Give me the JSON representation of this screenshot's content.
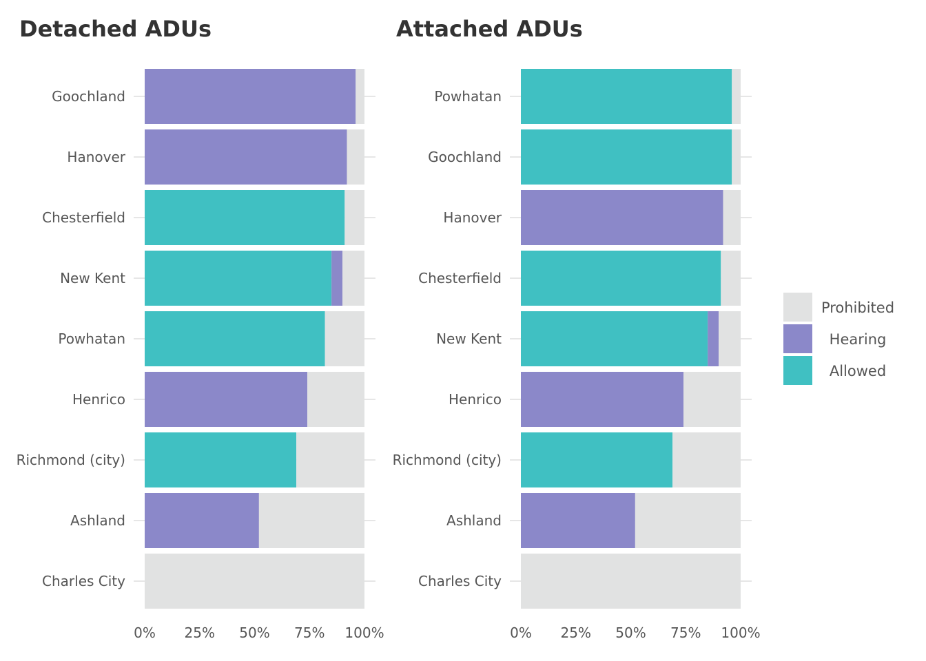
{
  "colors": {
    "Prohibited": "#e1e2e2",
    "Hearing": "#8b88c9",
    "Allowed": "#40c0c2",
    "text": "#555555",
    "title": "#333333"
  },
  "legend": [
    {
      "label": "Prohibited",
      "color": "#e1e2e2"
    },
    {
      "label": "Hearing",
      "color": "#8b88c9"
    },
    {
      "label": "Allowed",
      "color": "#40c0c2"
    }
  ],
  "chart_data": [
    {
      "type": "bar",
      "orientation": "horizontal",
      "stacked": true,
      "title": "Detached ADUs",
      "xlim": [
        0,
        100
      ],
      "xticks": [
        "0%",
        "25%",
        "50%",
        "75%",
        "100%"
      ],
      "legend_position": "right",
      "categories": [
        "Goochland",
        "Hanover",
        "Chesterfield",
        "New Kent",
        "Powhatan",
        "Henrico",
        "Richmond (city)",
        "Ashland",
        "Charles City"
      ],
      "series": [
        {
          "name": "Allowed",
          "values": [
            0,
            0,
            91,
            85,
            82,
            0,
            69,
            0,
            0
          ]
        },
        {
          "name": "Hearing",
          "values": [
            96,
            92,
            0,
            5,
            0,
            74,
            0,
            52,
            0
          ]
        },
        {
          "name": "Prohibited",
          "values": [
            4,
            8,
            9,
            10,
            18,
            26,
            31,
            48,
            100
          ]
        }
      ]
    },
    {
      "type": "bar",
      "orientation": "horizontal",
      "stacked": true,
      "title": "Attached ADUs",
      "xlim": [
        0,
        100
      ],
      "xticks": [
        "0%",
        "25%",
        "50%",
        "75%",
        "100%"
      ],
      "legend_position": "right",
      "categories": [
        "Powhatan",
        "Goochland",
        "Hanover",
        "Chesterfield",
        "New Kent",
        "Henrico",
        "Richmond (city)",
        "Ashland",
        "Charles City"
      ],
      "series": [
        {
          "name": "Allowed",
          "values": [
            96,
            96,
            0,
            91,
            85,
            0,
            69,
            0,
            0
          ]
        },
        {
          "name": "Hearing",
          "values": [
            0,
            0,
            92,
            0,
            5,
            74,
            0,
            52,
            0
          ]
        },
        {
          "name": "Prohibited",
          "values": [
            4,
            4,
            8,
            9,
            10,
            26,
            31,
            48,
            100
          ]
        }
      ]
    }
  ]
}
